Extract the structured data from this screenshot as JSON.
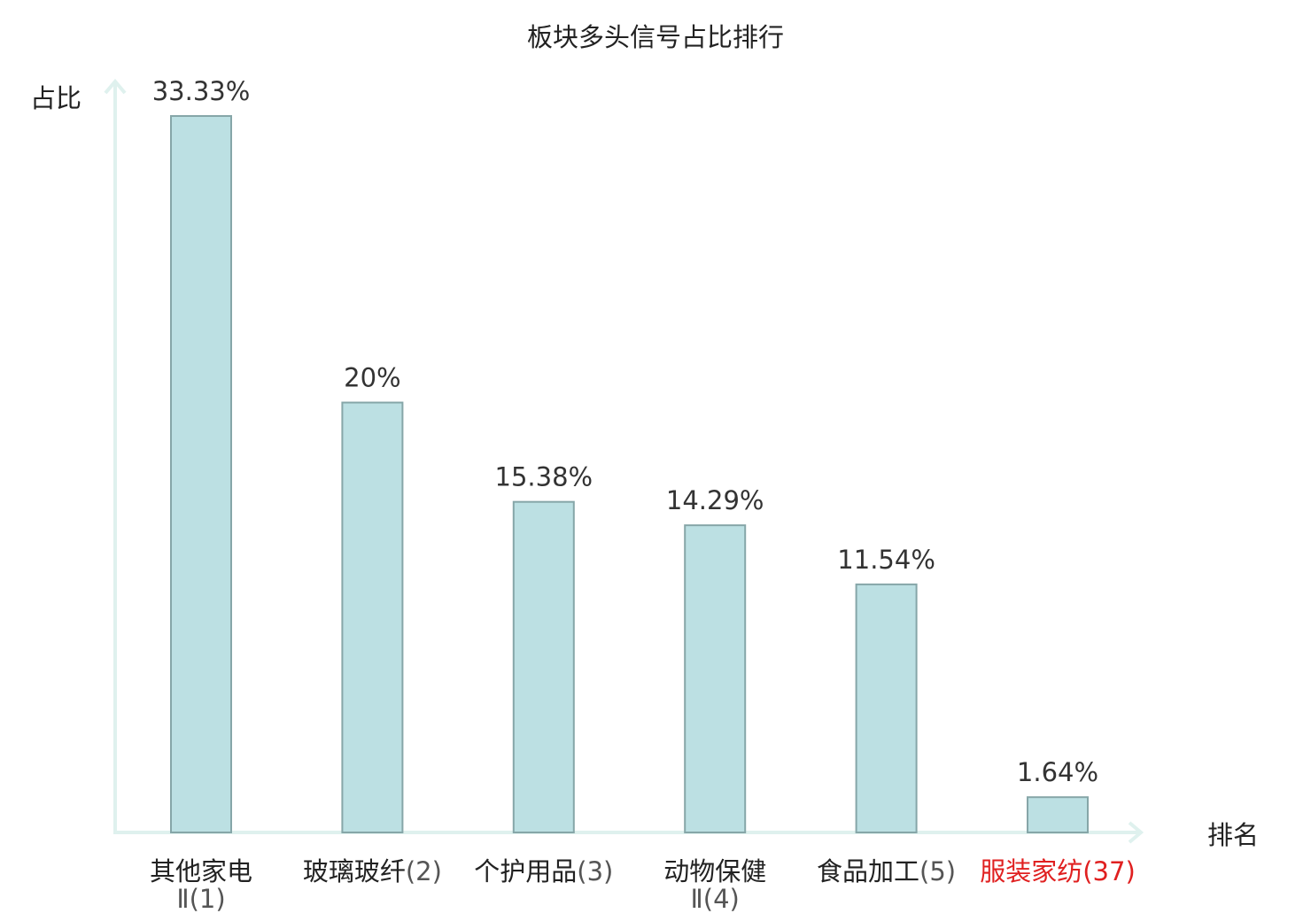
{
  "chart_data": {
    "type": "bar",
    "title": "板块多头信号占比排行",
    "ylabel": "占比",
    "xlabel": "排名",
    "ylim": [
      0,
      36
    ],
    "categories": [
      {
        "name": "其他家电",
        "name2": "Ⅱ",
        "rank": "(1)",
        "highlight": false
      },
      {
        "name": "玻璃玻纤",
        "name2": "",
        "rank": "(2)",
        "highlight": false
      },
      {
        "name": "个护用品",
        "name2": "",
        "rank": "(3)",
        "highlight": false
      },
      {
        "name": "动物保健",
        "name2": "Ⅱ",
        "rank": "(4)",
        "highlight": false
      },
      {
        "name": "食品加工",
        "name2": "",
        "rank": "(5)",
        "highlight": false
      },
      {
        "name": "服装家纺",
        "name2": "",
        "rank": "(37)",
        "highlight": true
      }
    ],
    "values": [
      33.33,
      20,
      15.38,
      14.29,
      11.54,
      1.64
    ],
    "value_labels": [
      "33.33%",
      "20%",
      "15.38%",
      "14.29%",
      "11.54%",
      "1.64%"
    ],
    "grid": false,
    "legend": "none"
  },
  "colors": {
    "bar_fill": "#bce0e3",
    "bar_stroke": "#86a6a8",
    "axis": "#dff1ee",
    "text": "#222222",
    "value_text": "#333333",
    "rank_text": "#555555",
    "highlight": "#e02020"
  }
}
